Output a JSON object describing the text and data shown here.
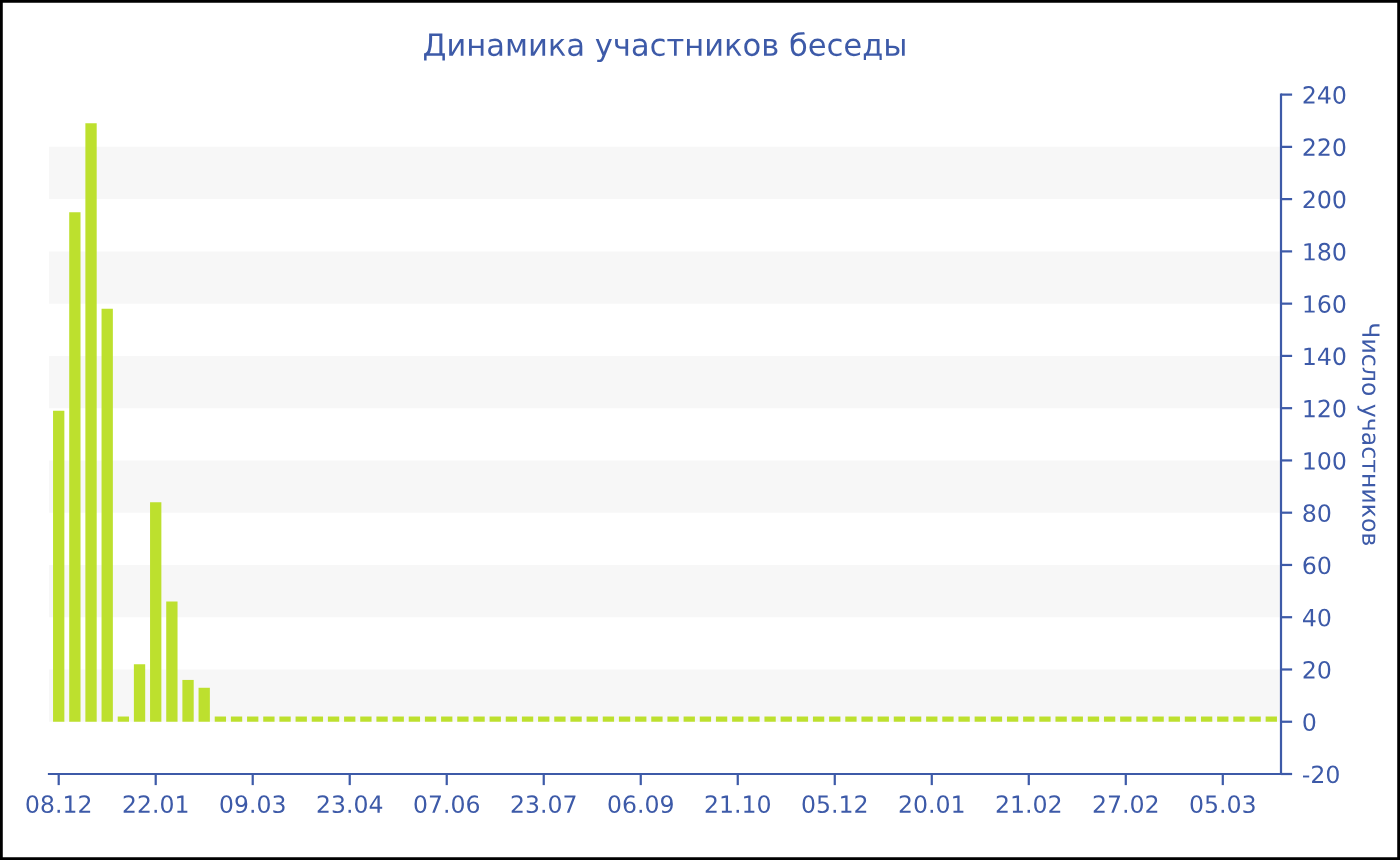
{
  "chart_data": {
    "type": "bar",
    "title": "Динамика участников беседы",
    "ylabel": "Число участников",
    "categories": [
      "08.12",
      null,
      null,
      null,
      null,
      null,
      "22.01",
      null,
      null,
      null,
      null,
      null,
      "09.03",
      null,
      null,
      null,
      null,
      null,
      "23.04",
      null,
      null,
      null,
      null,
      null,
      "07.06",
      null,
      null,
      null,
      null,
      null,
      "23.07",
      null,
      null,
      null,
      null,
      null,
      "06.09",
      null,
      null,
      null,
      null,
      null,
      "21.10",
      null,
      null,
      null,
      null,
      null,
      "05.12",
      null,
      null,
      null,
      null,
      null,
      "20.01",
      null,
      null,
      null,
      null,
      null,
      "21.02",
      null,
      null,
      null,
      null,
      null,
      "27.02",
      null,
      null,
      null,
      null,
      null,
      "05.03",
      null,
      null,
      null
    ],
    "values": [
      119,
      195,
      229,
      158,
      2,
      22,
      84,
      46,
      16,
      13,
      2,
      2,
      2,
      2,
      2,
      2,
      2,
      2,
      2,
      2,
      2,
      2,
      2,
      2,
      2,
      2,
      2,
      2,
      2,
      2,
      2,
      2,
      2,
      2,
      2,
      2,
      2,
      2,
      2,
      2,
      2,
      2,
      2,
      2,
      2,
      2,
      2,
      2,
      2,
      2,
      2,
      2,
      2,
      2,
      2,
      2,
      2,
      2,
      2,
      2,
      2,
      2,
      2,
      2,
      2,
      2,
      2,
      2,
      2,
      2,
      2,
      2,
      2,
      2,
      2,
      2
    ],
    "color": "#bde02e",
    "ylim": [
      -20,
      240
    ],
    "yticks": [
      -20,
      0,
      20,
      40,
      60,
      80,
      100,
      120,
      140,
      160,
      180,
      200,
      220,
      240
    ],
    "legend": false,
    "bands": [
      {
        "axis": "y",
        "from": 0,
        "to": 20,
        "color": "#f7f7f7"
      },
      {
        "axis": "y",
        "from": 40,
        "to": 60,
        "color": "#f7f7f7"
      },
      {
        "axis": "y",
        "from": 80,
        "to": 100,
        "color": "#f7f7f7"
      },
      {
        "axis": "y",
        "from": 120,
        "to": 140,
        "color": "#f7f7f7"
      },
      {
        "axis": "y",
        "from": 160,
        "to": 180,
        "color": "#f7f7f7"
      },
      {
        "axis": "y",
        "from": 200,
        "to": 220,
        "color": "#f7f7f7"
      }
    ]
  }
}
